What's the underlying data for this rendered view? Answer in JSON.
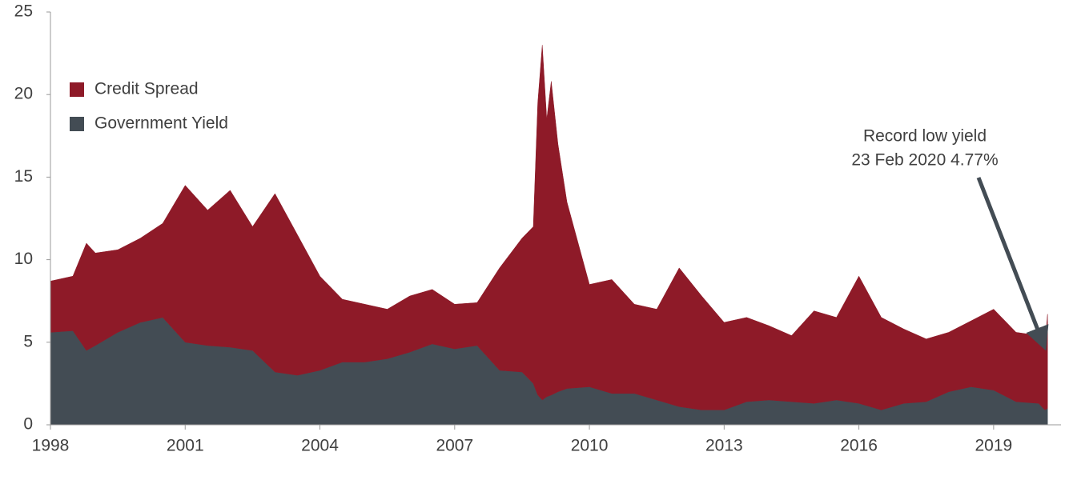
{
  "chart_data": {
    "type": "stacked-area",
    "x": [
      1998.0,
      1998.5,
      1998.8,
      1999.0,
      1999.5,
      2000.0,
      2000.5,
      2001.0,
      2001.5,
      2002.0,
      2002.5,
      2003.0,
      2003.5,
      2004.0,
      2004.5,
      2005.0,
      2005.5,
      2006.0,
      2006.5,
      2007.0,
      2007.5,
      2008.0,
      2008.5,
      2008.75,
      2008.85,
      2008.95,
      2009.05,
      2009.15,
      2009.3,
      2009.5,
      2010.0,
      2010.5,
      2011.0,
      2011.5,
      2012.0,
      2012.5,
      2013.0,
      2013.5,
      2014.0,
      2014.5,
      2015.0,
      2015.5,
      2016.0,
      2016.5,
      2017.0,
      2017.5,
      2018.0,
      2018.5,
      2019.0,
      2019.5,
      2020.0,
      2020.14,
      2020.2
    ],
    "series": [
      {
        "name": "Government Yield",
        "color": "#434c54",
        "values": [
          5.6,
          5.7,
          4.5,
          4.8,
          5.6,
          6.2,
          6.5,
          5.0,
          4.8,
          4.7,
          4.5,
          3.2,
          3.0,
          3.3,
          3.8,
          3.8,
          4.0,
          4.4,
          4.9,
          4.6,
          4.8,
          3.3,
          3.2,
          2.5,
          1.8,
          1.5,
          1.7,
          1.8,
          2.0,
          2.2,
          2.3,
          1.9,
          1.9,
          1.5,
          1.1,
          0.9,
          0.9,
          1.4,
          1.5,
          1.4,
          1.3,
          1.5,
          1.3,
          0.9,
          1.3,
          1.4,
          2.0,
          2.3,
          2.1,
          1.4,
          1.3,
          0.9,
          1.0
        ]
      },
      {
        "name": "Credit Spread",
        "color": "#8e1a28",
        "values": [
          3.1,
          3.3,
          6.5,
          5.6,
          5.0,
          5.1,
          5.7,
          9.5,
          8.2,
          9.5,
          7.5,
          10.8,
          8.5,
          5.7,
          3.8,
          3.5,
          3.0,
          3.4,
          3.3,
          2.7,
          2.6,
          6.2,
          8.1,
          9.5,
          17.7,
          21.5,
          16.8,
          19.0,
          15.0,
          11.3,
          6.2,
          6.9,
          5.4,
          5.5,
          8.4,
          6.9,
          5.3,
          5.1,
          4.5,
          4.0,
          5.6,
          5.0,
          7.7,
          5.6,
          4.5,
          3.8,
          3.6,
          4.0,
          4.9,
          4.2,
          4.1,
          3.87,
          5.7
        ]
      }
    ],
    "xlim": [
      1998,
      2020.5
    ],
    "xticks": [
      1998,
      2001,
      2004,
      2007,
      2010,
      2013,
      2016,
      2019
    ],
    "ylim": [
      0,
      25
    ],
    "yticks": [
      0,
      5,
      10,
      15,
      20,
      25
    ],
    "annotation": [
      "Record low yield",
      "23 Feb 2020 4.77%"
    ]
  }
}
